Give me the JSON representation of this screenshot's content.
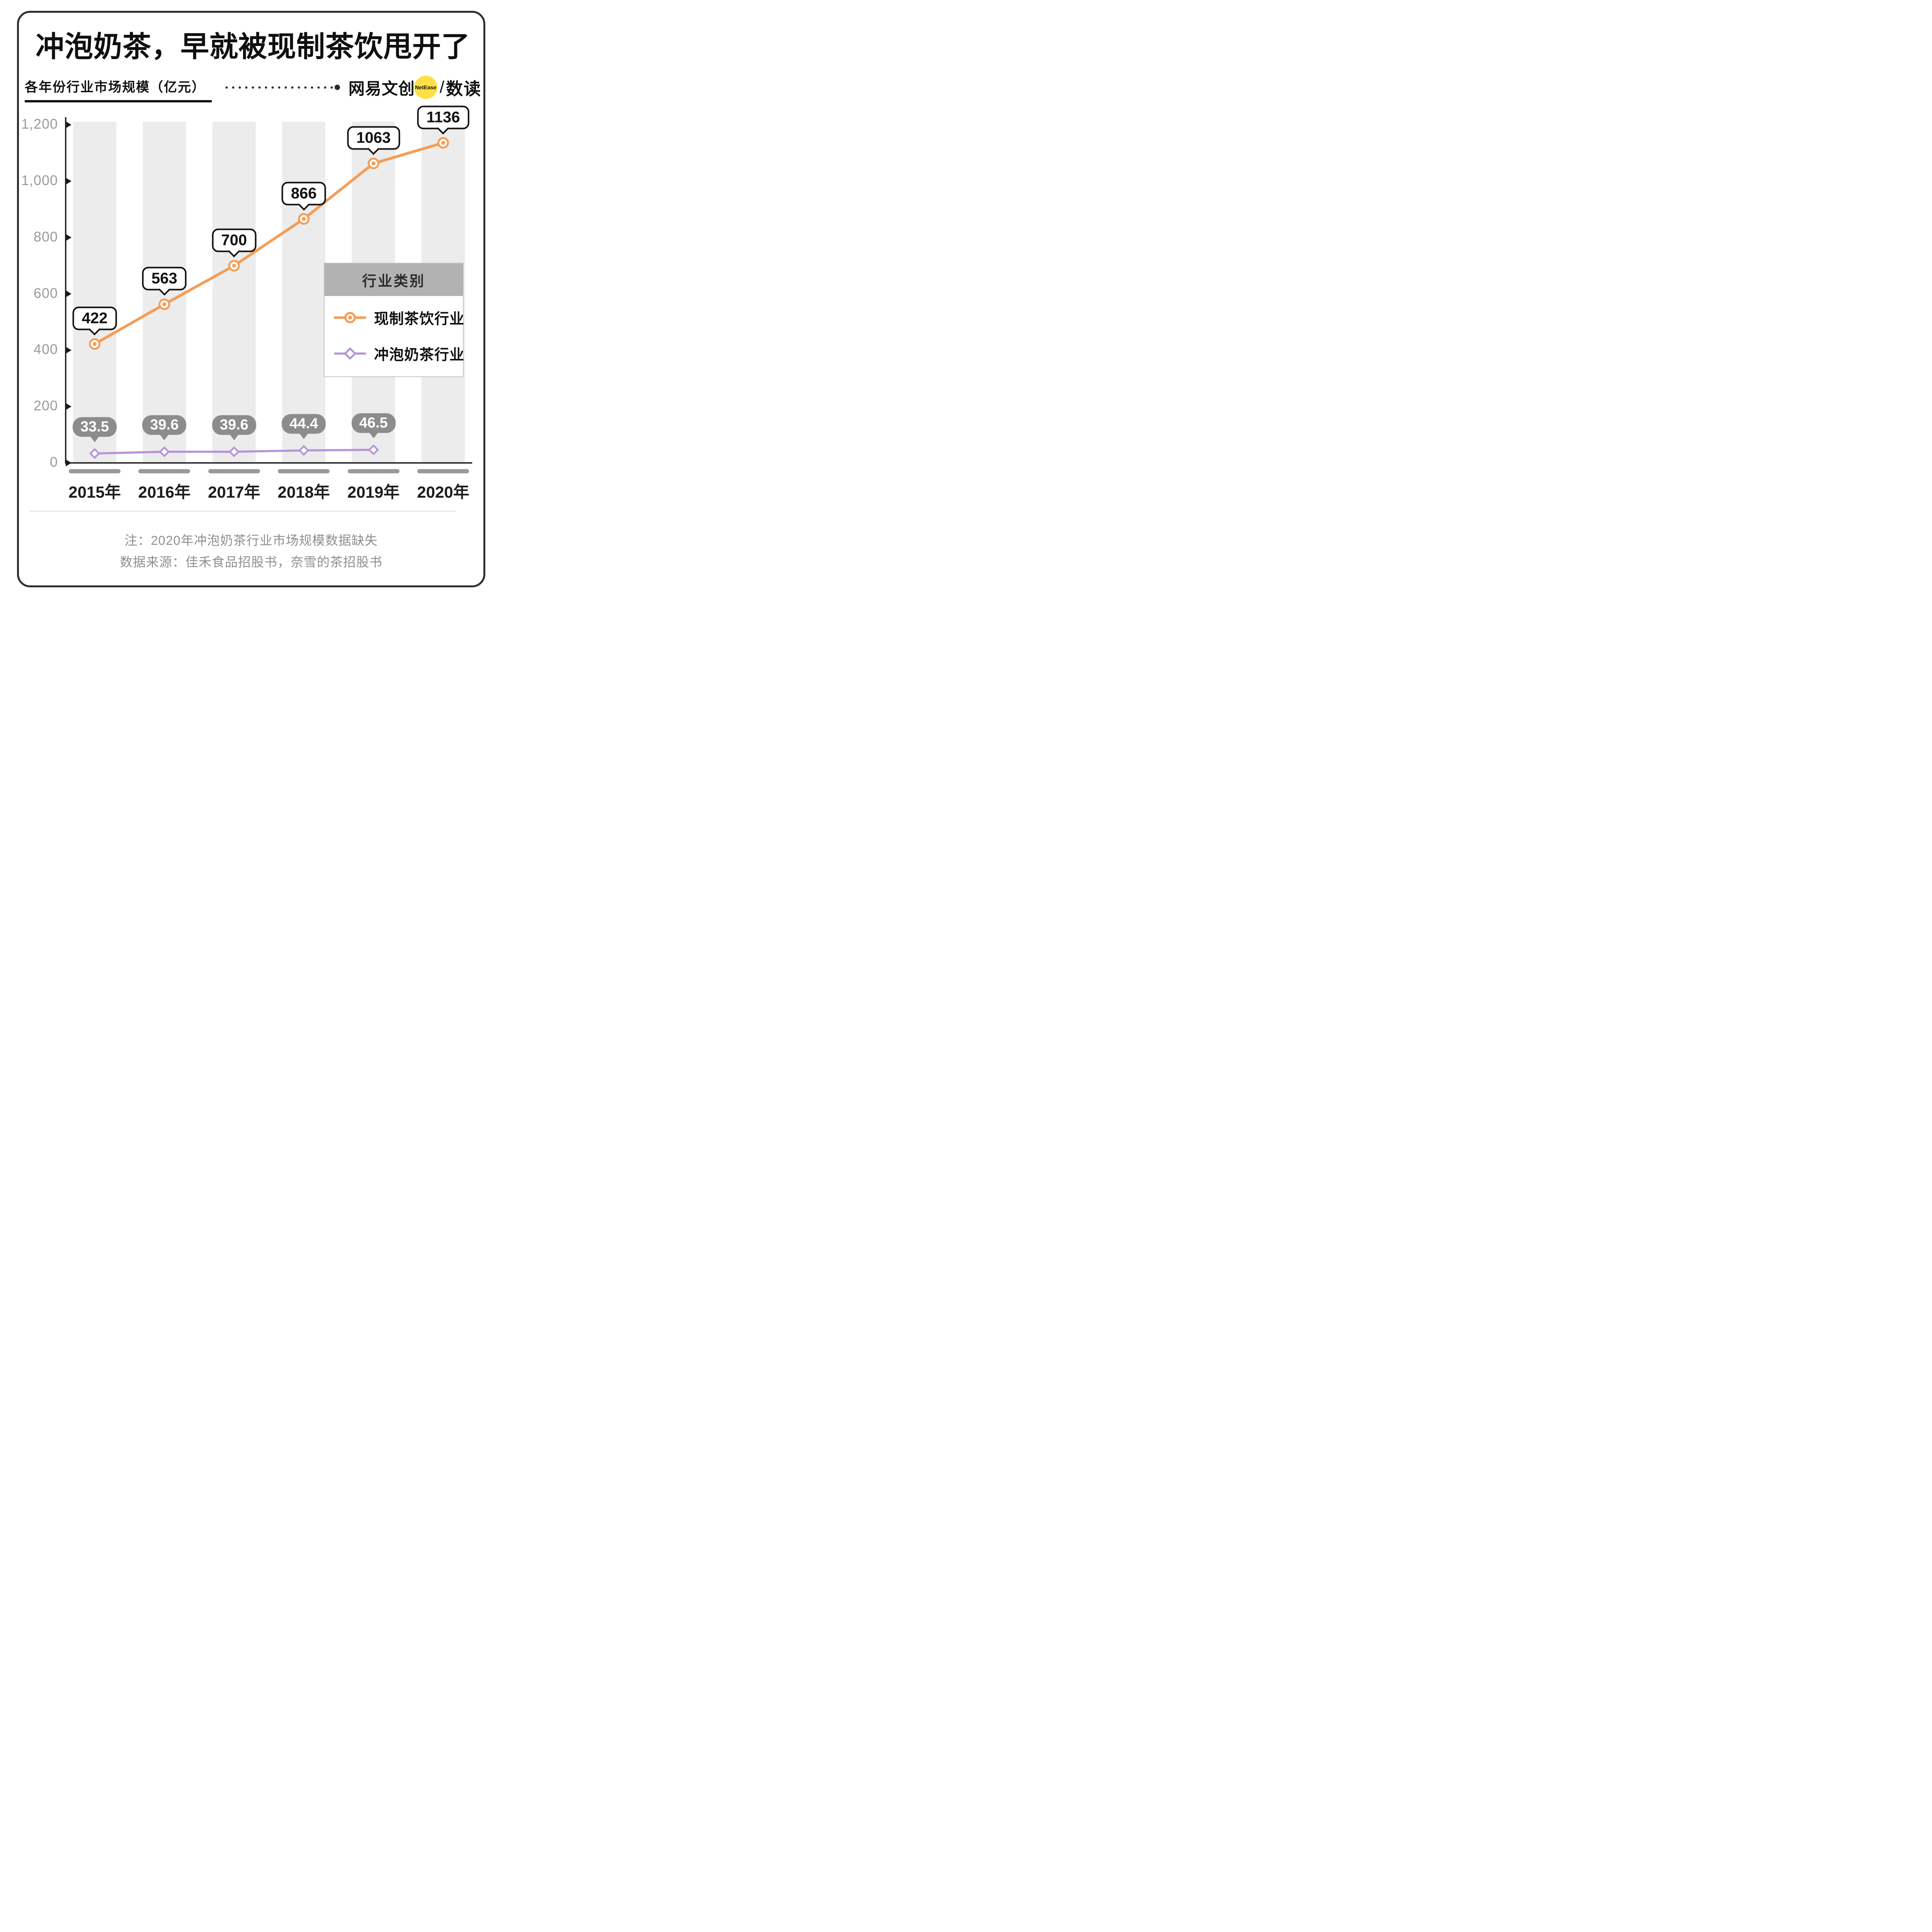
{
  "header": {
    "title": "冲泡奶茶，早就被现制茶饮甩开了",
    "subtitle": "各年份行业市场规模（亿元）",
    "brand": {
      "name": "网易文创",
      "badge": "NetEase",
      "separator": "/",
      "suffix": "数读"
    }
  },
  "chart_data": {
    "type": "line",
    "title": "各年份行业市场规模（亿元）",
    "categories": [
      "2015年",
      "2016年",
      "2017年",
      "2018年",
      "2019年",
      "2020年"
    ],
    "series": [
      {
        "name": "现制茶饮行业",
        "color": "#F49D56",
        "marker": "circle",
        "values": [
          422,
          563,
          700,
          866,
          1063,
          1136
        ],
        "labels": [
          "422",
          "563",
          "700",
          "866",
          "1063",
          "1136"
        ]
      },
      {
        "name": "冲泡奶茶行业",
        "color": "#B793D8",
        "marker": "diamond",
        "values": [
          33.5,
          39.6,
          39.6,
          44.4,
          46.5,
          null
        ],
        "labels": [
          "33.5",
          "39.6",
          "39.6",
          "44.4",
          "46.5",
          null
        ]
      }
    ],
    "ylim": [
      0,
      1260
    ],
    "yticks": [
      0,
      200,
      400,
      600,
      800,
      1000,
      1200
    ],
    "ytick_labels": [
      "0",
      "200",
      "400",
      "600",
      "800",
      "1,000",
      "1,200"
    ],
    "legend": {
      "title": "行业类别",
      "position": "right-middle"
    },
    "grid": "vertical-bands",
    "note": "2020年冲泡奶茶行业市场规模数据缺失"
  },
  "footer": {
    "note": "注：2020年冲泡奶茶行业市场规模数据缺失",
    "source": "数据来源：佳禾食品招股书，奈雪的茶招股书"
  },
  "colors": {
    "accent_orange": "#F49D56",
    "accent_purple": "#B793D8",
    "brand_yellow": "#FFE042",
    "band_gray": "#ECECEC",
    "bubble_gray": "#8C8C8C",
    "axis_black": "#1b1b1b"
  }
}
